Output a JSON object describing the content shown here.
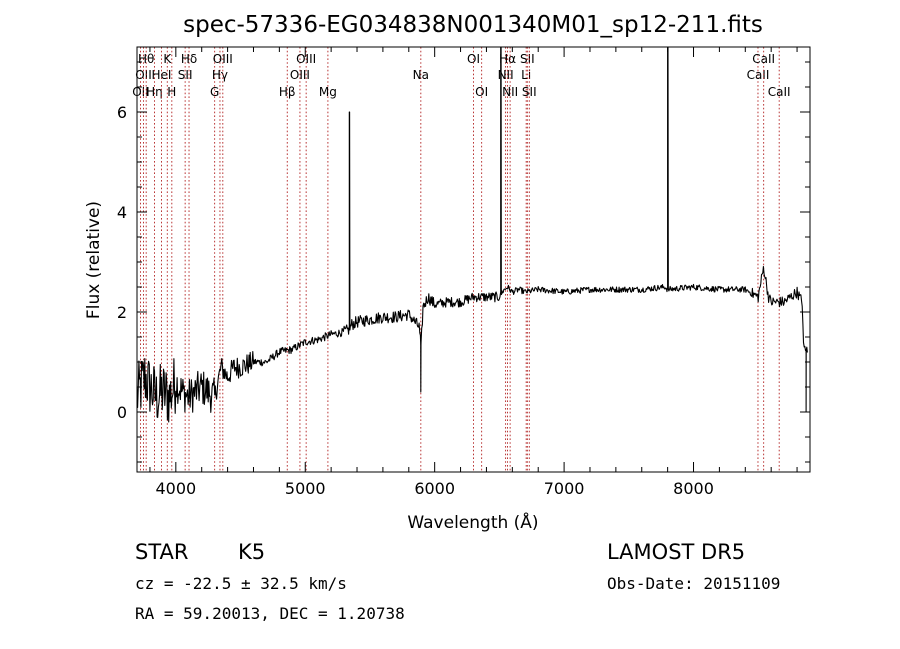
{
  "chart_data": {
    "type": "line",
    "title": "spec-57336-EG034838N001340M01_sp12-211.fits",
    "xlabel": "Wavelength (Å)",
    "ylabel": "Flux (relative)",
    "xlim": [
      3700,
      8900
    ],
    "ylim": [
      -1.2,
      7.3
    ],
    "xticks": [
      4000,
      5000,
      6000,
      7000,
      8000
    ],
    "yticks": [
      0,
      2,
      4,
      6
    ],
    "grid": false,
    "line_color": "#000000",
    "marker_color": "#b22222",
    "spectrum_anchors": {
      "x": [
        3700,
        3760,
        3800,
        3850,
        3900,
        3950,
        4000,
        4050,
        4100,
        4150,
        4200,
        4250,
        4300,
        4350,
        4400,
        4450,
        4500,
        4600,
        4700,
        4800,
        4900,
        5000,
        5100,
        5200,
        5300,
        5340,
        5360,
        5400,
        5500,
        5600,
        5700,
        5800,
        5880,
        5895,
        5910,
        5950,
        6000,
        6100,
        6200,
        6300,
        6400,
        6500,
        6520,
        6562,
        6600,
        6650,
        6700,
        6800,
        7000,
        7200,
        7400,
        7600,
        7780,
        7800,
        8000,
        8200,
        8400,
        8500,
        8542,
        8580,
        8600,
        8700,
        8800,
        8840,
        8850,
        8880
      ],
      "y": [
        0.3,
        0.7,
        0.5,
        0.3,
        0.4,
        0.3,
        0.6,
        0.4,
        0.3,
        0.4,
        0.5,
        0.4,
        0.3,
        0.9,
        0.7,
        0.9,
        0.9,
        1.0,
        1.0,
        1.2,
        1.25,
        1.4,
        1.45,
        1.55,
        1.6,
        1.65,
        1.75,
        1.8,
        1.85,
        1.9,
        1.9,
        1.95,
        1.7,
        1.3,
        2.1,
        2.3,
        2.15,
        2.2,
        2.2,
        2.3,
        2.3,
        2.3,
        2.4,
        2.5,
        2.4,
        2.45,
        2.4,
        2.45,
        2.4,
        2.45,
        2.45,
        2.45,
        2.5,
        2.45,
        2.5,
        2.45,
        2.45,
        2.3,
        2.9,
        2.3,
        2.2,
        2.2,
        2.4,
        2.2,
        1.3,
        1.2
      ]
    },
    "emission_spikes": [
      {
        "x": 5340,
        "y": 6.0
      },
      {
        "x": 6510,
        "y": 7.3
      },
      {
        "x": 7800,
        "y": 7.3
      }
    ],
    "absorption_dips": [
      {
        "x": 5893,
        "y": 0.4
      },
      {
        "x": 8870,
        "y": 0.0
      }
    ],
    "line_markers": [
      {
        "x": 3727,
        "label": "OII",
        "row": 2
      },
      {
        "x": 3750,
        "label": "OII",
        "row": 1
      },
      {
        "x": 3771,
        "label": "Hθ",
        "row": 0
      },
      {
        "x": 3835,
        "label": "Hη",
        "row": 2
      },
      {
        "x": 3889,
        "label": "HeI",
        "row": 1
      },
      {
        "x": 3934,
        "label": "K",
        "row": 0
      },
      {
        "x": 3969,
        "label": "H",
        "row": 2
      },
      {
        "x": 4072,
        "label": "SII",
        "row": 1
      },
      {
        "x": 4102,
        "label": "Hδ",
        "row": 0
      },
      {
        "x": 4300,
        "label": "G",
        "row": 2
      },
      {
        "x": 4341,
        "label": "Hγ",
        "row": 1
      },
      {
        "x": 4363,
        "label": "OIII",
        "row": 0
      },
      {
        "x": 4861,
        "label": "Hβ",
        "row": 2
      },
      {
        "x": 4959,
        "label": "OIII",
        "row": 1
      },
      {
        "x": 5007,
        "label": "OIII",
        "row": 0
      },
      {
        "x": 5175,
        "label": "Mg",
        "row": 2
      },
      {
        "x": 5893,
        "label": "Na",
        "row": 1
      },
      {
        "x": 6300,
        "label": "OI",
        "row": 0
      },
      {
        "x": 6363,
        "label": "OI",
        "row": 2
      },
      {
        "x": 6548,
        "label": "NII",
        "row": 1
      },
      {
        "x": 6563,
        "label": "Hα",
        "row": 0
      },
      {
        "x": 6583,
        "label": "NII",
        "row": 2
      },
      {
        "x": 6707,
        "label": "Li",
        "row": 1
      },
      {
        "x": 6716,
        "label": "SII",
        "row": 0
      },
      {
        "x": 6731,
        "label": "SII",
        "row": 2
      },
      {
        "x": 8498,
        "label": "CaII",
        "row": 1
      },
      {
        "x": 8542,
        "label": "CaII",
        "row": 0
      },
      {
        "x": 8662,
        "label": "CaII",
        "row": 2
      }
    ]
  },
  "info": {
    "class_label": "STAR",
    "subclass_label": "K5",
    "survey_label": "LAMOST DR5",
    "redshift_text": "cz = -22.5 ± 32.5 km/s",
    "obs_date_text": "Obs-Date: 20151109",
    "coords_text": "RA =  59.20013, DEC =   1.20738"
  }
}
